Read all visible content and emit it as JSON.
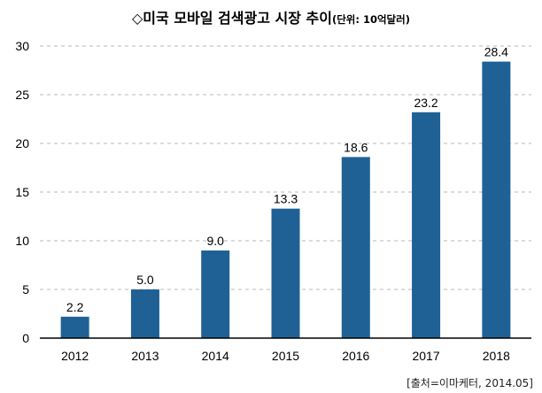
{
  "title": {
    "main": "◇미국 모바일 검색광고 시장 추이",
    "unit": "(단위: 10억달러)"
  },
  "source": "[출처=이마케터, 2014.05]",
  "colors": {
    "bar": "#1f6194",
    "axis": "#000000",
    "grid": "#b8b8b8"
  },
  "chart_data": {
    "type": "bar",
    "title": "◇미국 모바일 검색광고 시장 추이",
    "subtitle": "(단위: 10억달러)",
    "categories": [
      "2012",
      "2013",
      "2014",
      "2015",
      "2016",
      "2017",
      "2018"
    ],
    "values": [
      2.2,
      5.0,
      9.0,
      13.3,
      18.6,
      23.2,
      28.4
    ],
    "data_labels": [
      "2.2",
      "5.0",
      "9.0",
      "13.3",
      "18.6",
      "23.2",
      "28.4"
    ],
    "ylim": [
      0,
      30
    ],
    "yticks": [
      0,
      5,
      10,
      15,
      20,
      25,
      30
    ],
    "xlabel": "",
    "ylabel": "",
    "grid": true,
    "legend": "none"
  }
}
